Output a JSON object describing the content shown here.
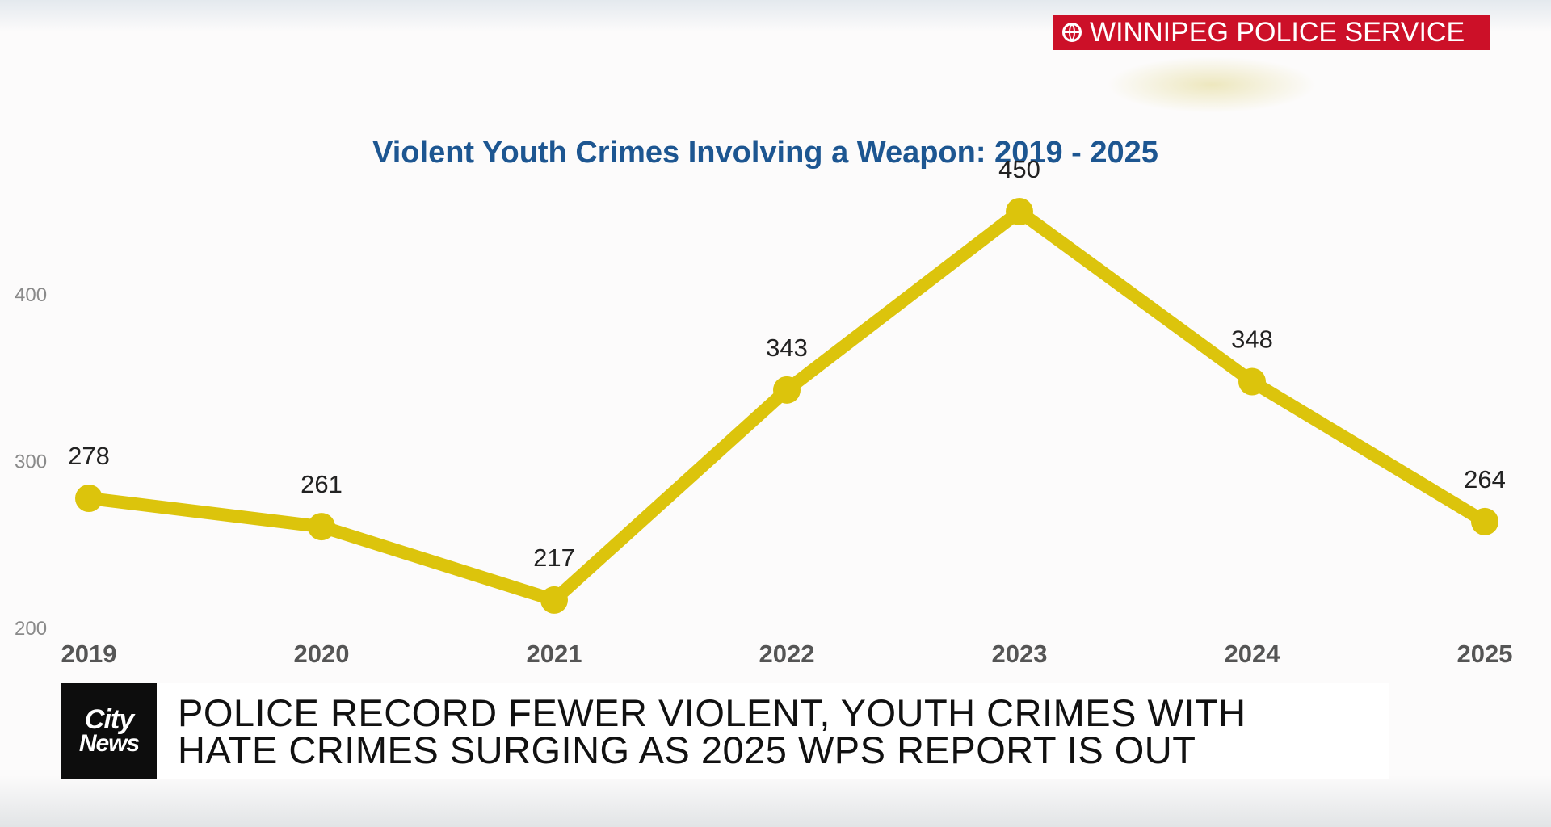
{
  "source_badge": {
    "text": "WINNIPEG POLICE SERVICE",
    "color": "#cc1028",
    "icon": "globe-icon"
  },
  "chart_data": {
    "type": "line",
    "title": "Violent Youth Crimes Involving a Weapon: 2019 - 2025",
    "categories": [
      "2019",
      "2020",
      "2021",
      "2022",
      "2023",
      "2024",
      "2025"
    ],
    "values": [
      278,
      261,
      217,
      343,
      450,
      348,
      264
    ],
    "data_labels": [
      "278",
      "261",
      "217",
      "343",
      "450",
      "348",
      "264"
    ],
    "y_ticks": [
      200,
      300,
      400
    ],
    "y_tick_labels": [
      "200",
      "300",
      "400"
    ],
    "ylim": [
      200,
      450
    ],
    "grid": false,
    "legend": "none",
    "line_color": "#dcc40c",
    "title_color": "#1d5691"
  },
  "ticker": {
    "logo_line1": "City",
    "logo_line2": "News",
    "headline_line1": "POLICE RECORD FEWER VIOLENT, YOUTH CRIMES WITH",
    "headline_line2": "HATE CRIMES SURGING AS 2025 WPS REPORT IS OUT"
  }
}
